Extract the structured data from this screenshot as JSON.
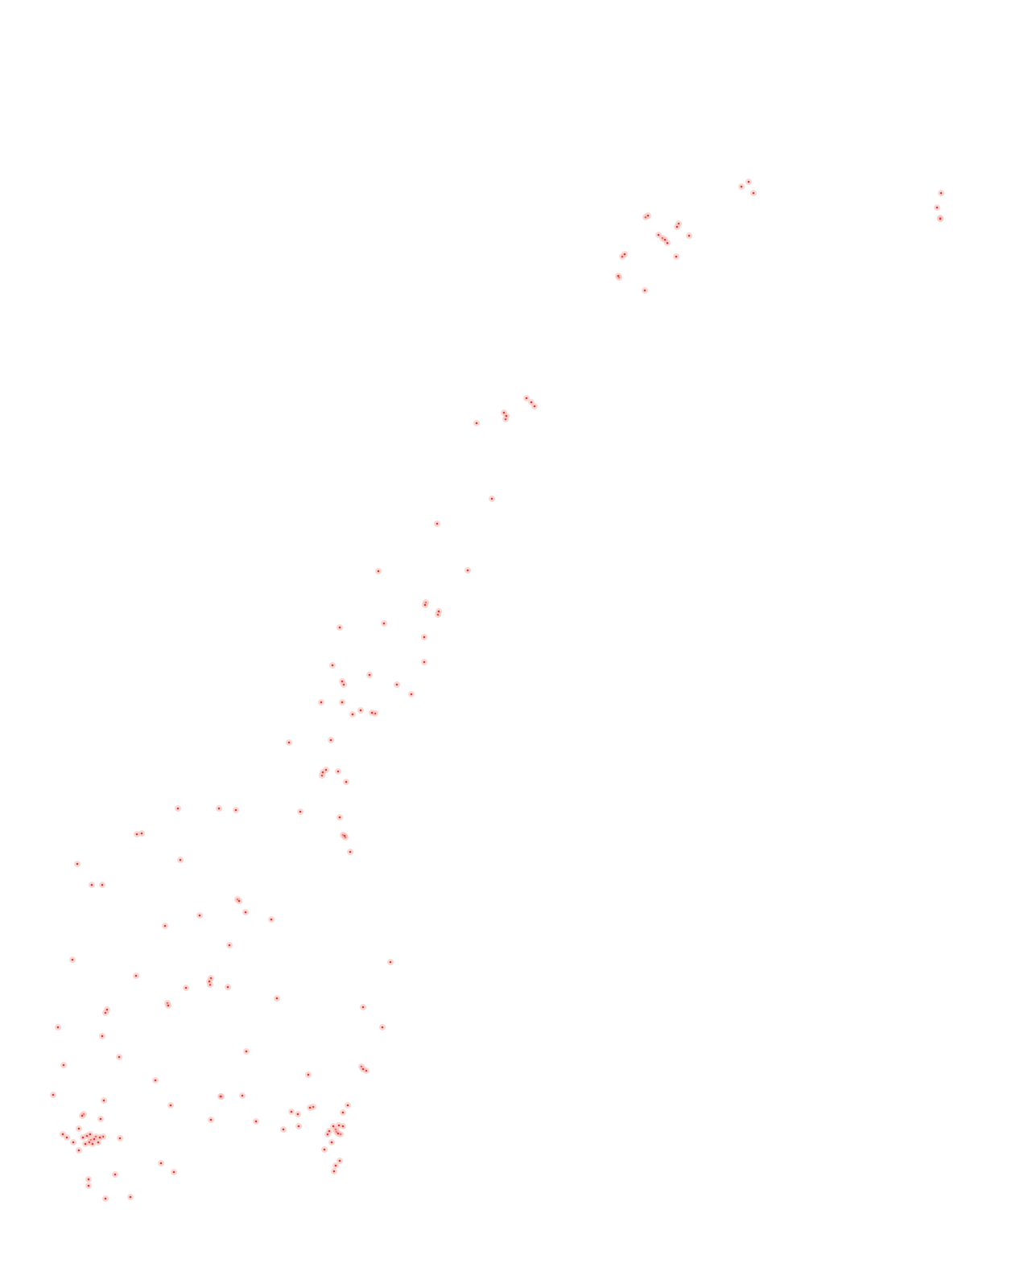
{
  "map": {
    "background_color": "#ffffff",
    "marker_color": "#e8372c",
    "marker_halo_color": "#f7b9b4",
    "marker_icon": "location-dot-icon",
    "marker_count": 165
  }
}
